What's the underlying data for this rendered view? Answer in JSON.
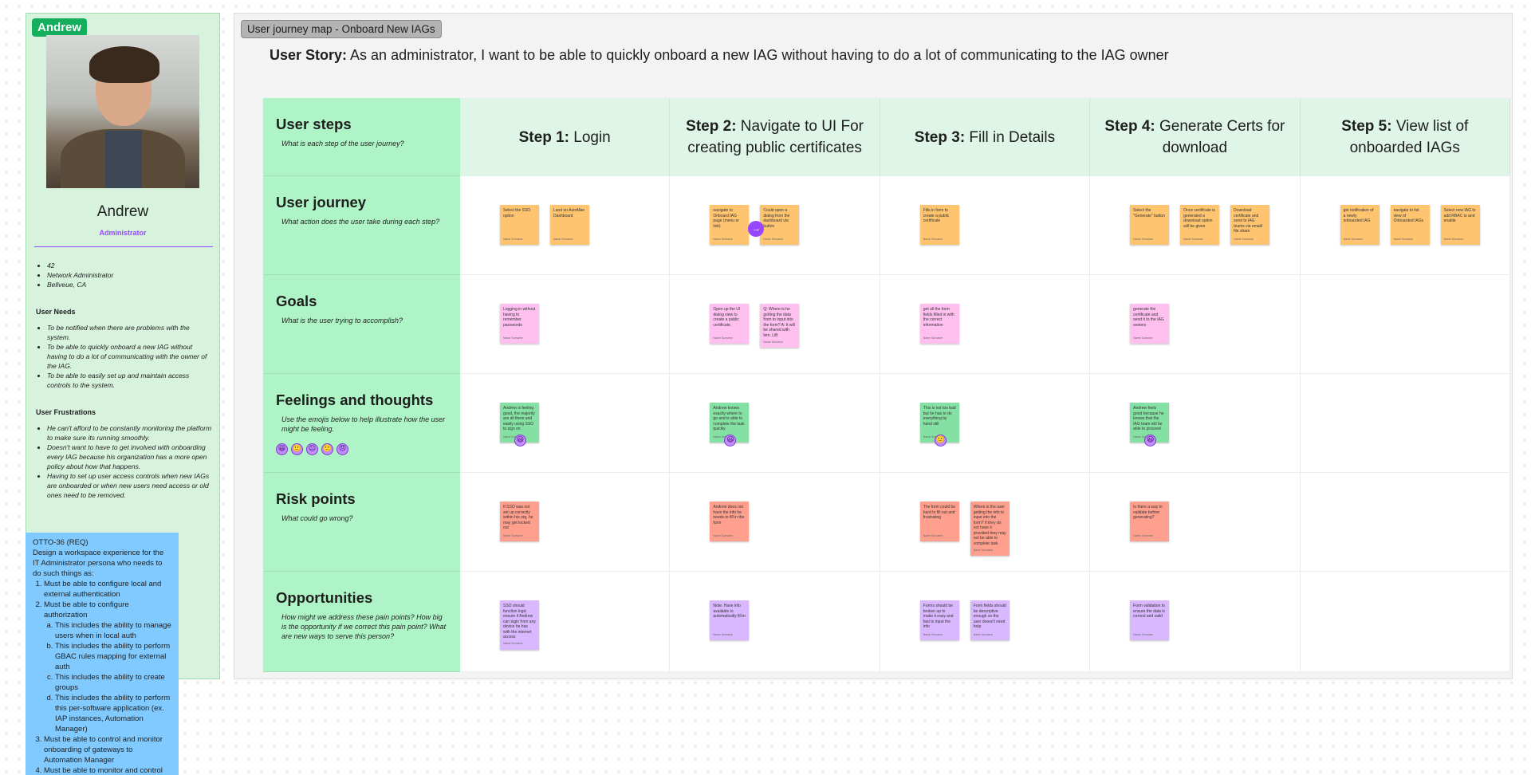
{
  "persona": {
    "tag": "Andrew",
    "name": "Andrew",
    "role": "Administrator",
    "facts": [
      "42",
      "Network Administrator",
      "Bellveue, CA"
    ],
    "needs_title": "User Needs",
    "needs": [
      "To be notified when there are problems with the system.",
      "To be able to quickly onboard a new IAG without having to do a lot of communicating with the owner of the IAG.",
      "To be able to easily set up and maintain access controls to the system."
    ],
    "frustrations_title": "User Frustrations",
    "frustrations": [
      "He can't afford to be constantly monitoring the platform to make sure its running smoothly.",
      "Doesn't want to have to get involved with onboarding every IAG because his organization has a more open policy about how that happens.",
      "Having to set up user access controls when new IAGs are onboarded or when new users need access or old ones need to be removed."
    ]
  },
  "requirement": {
    "title": "OTTO-36 (REQ)",
    "intro": "Design a workspace experience for the IT Administrator persona who needs to do such things as:",
    "items": [
      {
        "text": "Must be able to configure local and external authentication",
        "sub": []
      },
      {
        "text": "Must be able to configure authorization",
        "sub": [
          "This includes the ability to manage users when in local auth",
          "This includes the ability to perform GBAC rules mapping for external auth",
          "This includes the ability to create groups",
          "This includes the ability to perform this per-software application (ex. IAP instances, Automation Manager)"
        ]
      },
      {
        "text": "Must be able to control and monitor onboarding of gateways to Automation Manager",
        "sub": []
      },
      {
        "text": "Must be able to monitor and control gateways for Automation Manager",
        "sub": []
      }
    ]
  },
  "section": {
    "tag": "User journey map - Onboard New IAGs",
    "story_label": "User Story:",
    "story_text": " As an administrator, I want to be able to quickly onboard a new IAG without having to do a lot of communicating to the IAG owner"
  },
  "steps": [
    {
      "label": "Step 1:",
      "title": " Login"
    },
    {
      "label": "Step 2:",
      "title": " Navigate to UI For creating public certificates"
    },
    {
      "label": "Step 3:",
      "title": " Fill in Details"
    },
    {
      "label": "Step 4:",
      "title": " Generate Certs for download"
    },
    {
      "label": "Step 5:",
      "title": " View list of onboarded IAGs"
    }
  ],
  "rows": [
    {
      "title": "User steps",
      "sub": "What is each step of the user journey?"
    },
    {
      "title": "User journey",
      "sub": "What action does the user take during each step?"
    },
    {
      "title": "Goals",
      "sub": "What is the user trying to accomplish?"
    },
    {
      "title": "Feelings and thoughts",
      "sub": "Use the emojis below to help illustrate how the user might be feeling."
    },
    {
      "title": "Risk points",
      "sub": "What could go wrong?"
    },
    {
      "title": "Opportunities",
      "sub": "How might we address these pain points? How big is the opportunity if we correct this pain point? What are new ways to serve this person?"
    }
  ],
  "emoji_icons": [
    "😃",
    "🙂",
    "😐",
    "🙁",
    "😠"
  ],
  "stickies": {
    "journey": [
      [
        "Select the SSO option",
        "Land on AutoMan Dashboard"
      ],
      [
        "navigate to Onboard IAG page (menu or link)",
        "Could open a dialog from the dashboard via button"
      ],
      [
        "Fills in form to create a public certificate"
      ],
      [
        "Select the \"Generate\" button",
        "Once certificate is generated a download option will be given",
        "Download certificate and send to IAG teams via email/ file share"
      ],
      [
        "get notification of a newly onboarded IAG",
        "navigate to list view of Onboarded IAGs",
        "Select new IAG to add RBAC to and enable"
      ]
    ],
    "goals": [
      [
        "Logging in without having to remember passwords"
      ],
      [
        "Open up the UI dialog view to create a public certificate.",
        "Q: Where is he getting the data from to input into the form? A: It will be shared with him. LiB"
      ],
      [
        "get all the form fields filled in with the correct information"
      ],
      [
        "generate the certificate and send it to the IAG owners"
      ],
      []
    ],
    "feelings": [
      [
        "Andrew is feeling good, the majority are all there and easily using SSO to sign on"
      ],
      [
        "Andrew knows exactly where to go and is able to complete the task quickly"
      ],
      [
        "This is not too bad but he has to do everything by hand still"
      ],
      [
        "Andrew feels good because he knows that the IAG team will be able to proceed"
      ],
      []
    ],
    "feeling_emoji": [
      "😃",
      "😃",
      "🙂",
      "😃",
      ""
    ],
    "risks": [
      [
        "If SSO was not set up correctly within his org, he may get locked out"
      ],
      [
        "Andrew does not have the info he needs to fill in the form"
      ],
      [
        "The form could be hard to fill out and frustrating",
        "Where is the user getting the info to input into the form? If they do not have it provided they may not be able to complete task"
      ],
      [
        "Is there a way to validate before generating?"
      ],
      []
    ],
    "opportunities": [
      [
        "SSO should function logic ensure if Andrew can login from any device he has with the internet access"
      ],
      [
        "Note: Have info available to automatically fill in"
      ],
      [
        "Forms should be broken up to make it easy and fast to input the info",
        "Form fields should be descriptive enough so the user doesn't need help"
      ],
      [
        "Form validation to ensure the data is correct and valid"
      ],
      []
    ]
  },
  "connector_icon": "→",
  "author_label": "Name Surname"
}
